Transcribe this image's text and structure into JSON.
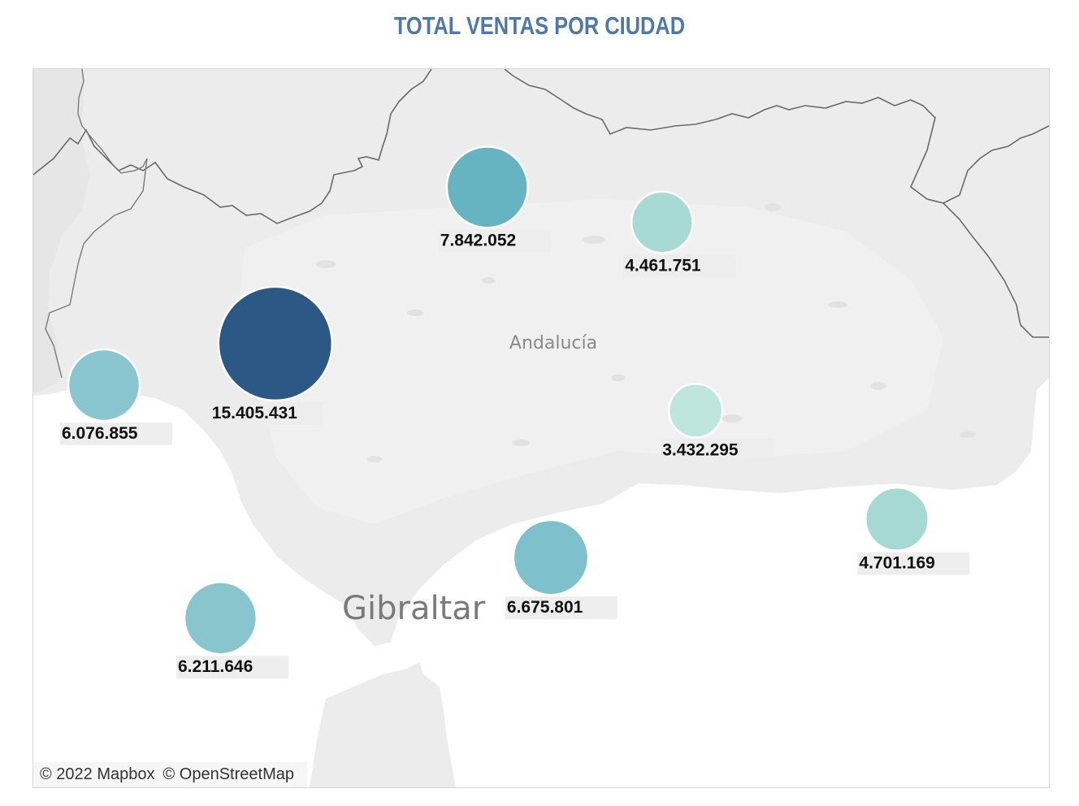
{
  "title": "TOTAL VENTAS POR CIUDAD",
  "map": {
    "region_label": "Andalucía",
    "gibraltar_label": "Gibraltar",
    "attribution": [
      "© 2022 Mapbox",
      "© OpenStreetMap"
    ]
  },
  "colors": {
    "title": "#4e79a7",
    "scale_low": "#bfe6dc",
    "scale_high": "#2c5885",
    "label_bg": "#ececec"
  },
  "chart_data": {
    "type": "scatter",
    "title": "TOTAL VENTAS POR CIUDAD",
    "encoding": "symbol map; circle size and color encode total sales",
    "points": [
      {
        "label": "15.405.431",
        "value": 15405431,
        "lon": -5.98,
        "lat": 37.39,
        "color": "#2c5885"
      },
      {
        "label": "7.842.052",
        "value": 7842052,
        "lon": -4.78,
        "lat": 37.88,
        "color": "#66b3c1"
      },
      {
        "label": "6.675.801",
        "value": 6675801,
        "lon": -4.42,
        "lat": 36.72,
        "color": "#7ec0cb"
      },
      {
        "label": "6.211.646",
        "value": 6211646,
        "lon": -6.29,
        "lat": 36.53,
        "color": "#88c5cd"
      },
      {
        "label": "6.076.855",
        "value": 6076855,
        "lon": -6.95,
        "lat": 37.26,
        "color": "#89c6cf"
      },
      {
        "label": "4.701.169",
        "value": 4701169,
        "lon": -2.46,
        "lat": 36.84,
        "color": "#a6d8d4"
      },
      {
        "label": "4.461.751",
        "value": 4461751,
        "lon": -3.79,
        "lat": 37.77,
        "color": "#a8dad5"
      },
      {
        "label": "3.432.295",
        "value": 3432295,
        "lon": -3.6,
        "lat": 37.18,
        "color": "#bfe6dc"
      }
    ]
  }
}
